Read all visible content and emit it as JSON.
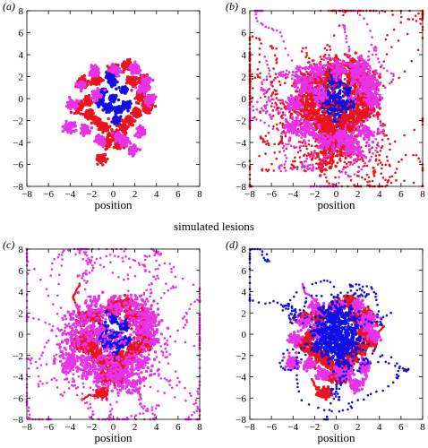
{
  "figure_caption": "simulated lesions",
  "colors": {
    "red": "#e8141e",
    "magenta": "#e832e8",
    "blue": "#1010e6"
  },
  "chart_data": [
    {
      "type": "scatter",
      "panel_label": "(a)",
      "xlabel": "position",
      "ylabel": "",
      "xlim": [
        -8,
        8
      ],
      "ylim": [
        -8,
        8
      ],
      "xticks": [
        -8,
        -6,
        -4,
        -2,
        0,
        2,
        4,
        6,
        8
      ],
      "yticks": [
        -8,
        -6,
        -4,
        -2,
        0,
        2,
        4,
        6,
        8
      ],
      "grid": false,
      "series": [
        {
          "color": "blue",
          "spread": 0.18,
          "walk": 0,
          "count": 10,
          "x": [
            0,
            1,
            -1,
            0.5,
            -0.5,
            0,
            1.2,
            -1.2,
            0.3,
            -0.3
          ],
          "y": [
            0,
            0.8,
            0.6,
            -1,
            -0.9,
            1.5,
            -0.6,
            -0.3,
            -2,
            2.1
          ]
        },
        {
          "color": "red",
          "spread": 0.22,
          "walk": 0,
          "count": 20,
          "x": [
            -1.6,
            1.8,
            0,
            -2.4,
            2.5,
            0.9,
            -0.8,
            1.5,
            -1.5,
            2.2,
            -2.2,
            0,
            3.2,
            -3.2,
            0.5,
            -0.6,
            2.8,
            -2.8,
            1.2,
            -1.1
          ],
          "y": [
            1.7,
            1.6,
            2.7,
            -0.2,
            0.1,
            -2.7,
            -2.6,
            -2,
            -2.1,
            -1.3,
            -1.4,
            -3.3,
            -0.8,
            -0.8,
            -4.2,
            -4.1,
            1.8,
            1.5,
            3,
            -5.5
          ]
        },
        {
          "color": "magenta",
          "spread": 0.22,
          "walk": 0,
          "count": 16,
          "x": [
            -1.8,
            0.2,
            2,
            -3,
            3.1,
            -3.8,
            3.4,
            -2.6,
            2.6,
            -1.2,
            1,
            2.8,
            -1.6,
            0.4,
            -4,
            1.8
          ],
          "y": [
            2.5,
            2.6,
            2.7,
            1.2,
            1.6,
            -0.5,
            -0.1,
            -2.8,
            -3,
            -3.8,
            -3.9,
            0.9,
            0.3,
            -3.5,
            -2.6,
            -4.7
          ]
        }
      ]
    },
    {
      "type": "scatter",
      "panel_label": "(b)",
      "xlabel": "position",
      "ylabel": "",
      "xlim": [
        -8,
        8
      ],
      "ylim": [
        -8,
        8
      ],
      "xticks": [
        -8,
        -6,
        -4,
        -2,
        0,
        2,
        4,
        6,
        8
      ],
      "yticks": [
        -8,
        -6,
        -4,
        -2,
        0,
        2,
        4,
        6,
        8
      ],
      "grid": false,
      "series": [
        {
          "color": "blue",
          "spread": 0.3,
          "walk": 0.08,
          "count": 10,
          "x": [
            0,
            1,
            -1,
            0.5,
            -0.5,
            0,
            1.2,
            -1.2,
            0.3,
            -0.3
          ],
          "y": [
            0,
            0.8,
            0.6,
            -1,
            -0.9,
            1.5,
            -0.6,
            -0.3,
            -2,
            2.1
          ]
        },
        {
          "color": "red",
          "spread": 0.5,
          "walk": 0.35,
          "count": 20,
          "x": [
            -1.6,
            1.8,
            0,
            -2.4,
            2.5,
            0.9,
            -0.8,
            1.5,
            -1.5,
            2.2,
            -2.2,
            0,
            3.2,
            -3.2,
            0.5,
            -0.6,
            2.8,
            -2.8,
            1.2,
            -1.1
          ],
          "y": [
            1.7,
            1.6,
            2.7,
            -0.2,
            0.1,
            -2.7,
            -2.6,
            -2,
            -2.1,
            -1.3,
            -1.4,
            -3.3,
            -0.8,
            -0.8,
            -4.2,
            -4.1,
            1.8,
            1.5,
            3,
            -5.5
          ]
        },
        {
          "color": "magenta",
          "spread": 0.4,
          "walk": 0.2,
          "count": 16,
          "x": [
            -1.8,
            0.2,
            2,
            -3,
            3.1,
            -3.8,
            3.4,
            -2.6,
            2.6,
            -1.2,
            1,
            2.8,
            -1.6,
            0.4,
            -4,
            1.8
          ],
          "y": [
            2.5,
            2.6,
            2.7,
            1.2,
            1.6,
            -0.5,
            -0.1,
            -2.8,
            -3,
            -3.8,
            -3.9,
            0.9,
            0.3,
            -3.5,
            -2.6,
            -4.7
          ]
        }
      ]
    },
    {
      "type": "scatter",
      "panel_label": "(c)",
      "xlabel": "position",
      "ylabel": "",
      "xlim": [
        -8,
        8
      ],
      "ylim": [
        -8,
        8
      ],
      "xticks": [
        -8,
        -6,
        -4,
        -2,
        0,
        2,
        4,
        6,
        8
      ],
      "yticks": [
        -8,
        -6,
        -4,
        -2,
        0,
        2,
        4,
        6,
        8
      ],
      "grid": false,
      "series": [
        {
          "color": "blue",
          "spread": 0.2,
          "walk": 0.02,
          "count": 10,
          "x": [
            0,
            1,
            -1,
            0.5,
            -0.5,
            0,
            1.2,
            -1.2,
            0.3,
            -0.3
          ],
          "y": [
            0,
            0.8,
            0.6,
            -1,
            -0.9,
            1.5,
            -0.6,
            -0.3,
            -2,
            2.1
          ]
        },
        {
          "color": "red",
          "spread": 0.3,
          "walk": 0.06,
          "count": 20,
          "x": [
            -1.6,
            1.8,
            0,
            -2.4,
            2.5,
            0.9,
            -0.8,
            1.5,
            -1.5,
            2.2,
            -2.2,
            0,
            3.2,
            -3.2,
            0.5,
            -0.6,
            2.8,
            -2.8,
            1.2,
            -1.1
          ],
          "y": [
            1.7,
            1.6,
            2.7,
            -0.2,
            0.1,
            -2.7,
            -2.6,
            -2,
            -2.1,
            -1.3,
            -1.4,
            -3.3,
            -0.8,
            -0.8,
            -4.2,
            -4.1,
            1.8,
            1.5,
            3,
            -5.5
          ]
        },
        {
          "color": "magenta",
          "spread": 0.6,
          "walk": 0.35,
          "count": 16,
          "x": [
            -1.8,
            0.2,
            2,
            -3,
            3.1,
            -3.8,
            3.4,
            -2.6,
            2.6,
            -1.2,
            1,
            2.8,
            -1.6,
            0.4,
            -4,
            1.8
          ],
          "y": [
            2.5,
            2.6,
            2.7,
            1.2,
            1.6,
            -0.5,
            -0.1,
            -2.8,
            -3,
            -3.8,
            -3.9,
            0.9,
            0.3,
            -3.5,
            -2.6,
            -4.7
          ]
        }
      ]
    },
    {
      "type": "scatter",
      "panel_label": "(d)",
      "xlabel": "position",
      "ylabel": "",
      "xlim": [
        -8,
        8
      ],
      "ylim": [
        -8,
        8
      ],
      "xticks": [
        -8,
        -6,
        -4,
        -2,
        0,
        2,
        4,
        6,
        8
      ],
      "yticks": [
        -8,
        -6,
        -4,
        -2,
        0,
        2,
        4,
        6,
        8
      ],
      "grid": false,
      "series": [
        {
          "color": "red",
          "spread": 0.3,
          "walk": 0.05,
          "count": 20,
          "x": [
            -1.6,
            1.8,
            0,
            -2.4,
            2.5,
            0.9,
            -0.8,
            1.5,
            -1.5,
            2.2,
            -2.2,
            0,
            3.2,
            -3.2,
            0.5,
            -0.6,
            2.8,
            -2.8,
            1.2,
            -1.1
          ],
          "y": [
            1.7,
            1.6,
            2.7,
            -0.2,
            0.1,
            -2.7,
            -2.6,
            -2,
            -2.1,
            -1.3,
            -1.4,
            -3.3,
            -0.8,
            -0.8,
            -4.2,
            -4.1,
            1.8,
            1.5,
            3,
            -5.5
          ]
        },
        {
          "color": "magenta",
          "spread": 0.3,
          "walk": 0.05,
          "count": 16,
          "x": [
            -1.8,
            0.2,
            2,
            -3,
            3.1,
            -3.8,
            3.4,
            -2.6,
            2.6,
            -1.2,
            1,
            2.8,
            -1.6,
            0.4,
            -4,
            1.8
          ],
          "y": [
            2.5,
            2.6,
            2.7,
            1.2,
            1.6,
            -0.5,
            -0.1,
            -2.8,
            -3,
            -3.8,
            -3.9,
            0.9,
            0.3,
            -3.5,
            -2.6,
            -4.7
          ]
        },
        {
          "color": "blue",
          "spread": 0.6,
          "walk": 0.3,
          "count": 10,
          "x": [
            0,
            1,
            -1,
            0.5,
            -0.5,
            0,
            1.2,
            -1.2,
            0.3,
            -0.3
          ],
          "y": [
            0,
            0.8,
            0.6,
            -1,
            -0.9,
            1.5,
            -0.6,
            -0.3,
            -2,
            2.1
          ]
        }
      ]
    }
  ]
}
